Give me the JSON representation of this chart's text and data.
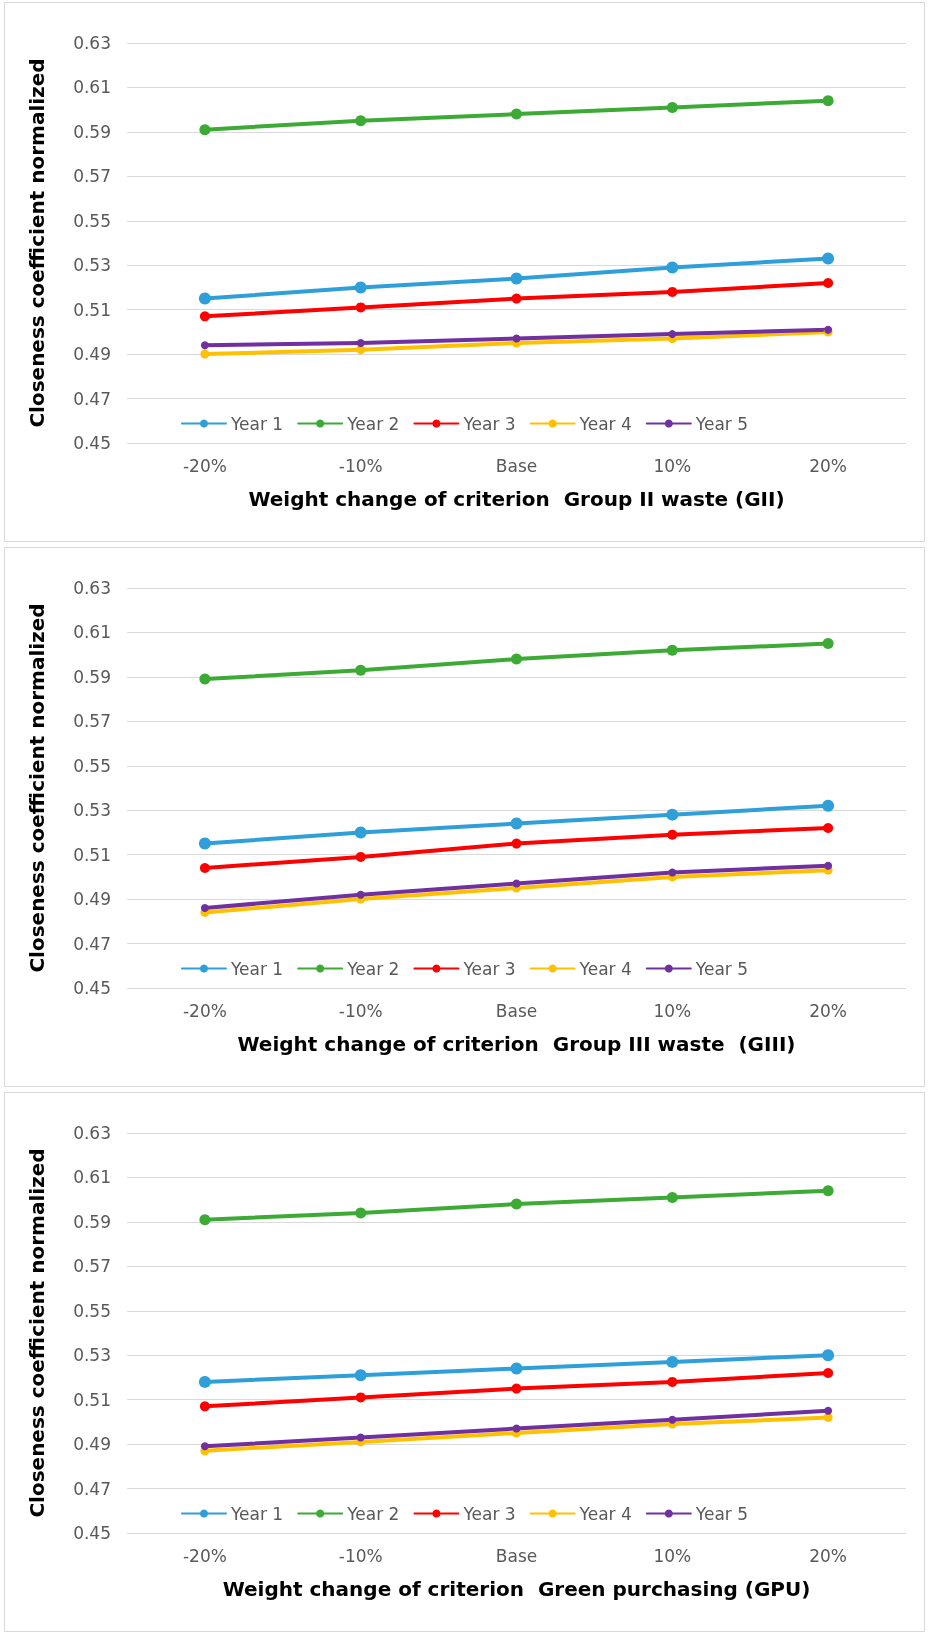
{
  "chart_data": [
    {
      "type": "line",
      "xlabel": "Weight change of criterion  Group II waste (GII)",
      "ylabel": "Closeness coefficient normalized",
      "categories": [
        "-20%",
        "-10%",
        "Base",
        "10%",
        "20%"
      ],
      "ylim": [
        0.45,
        0.63
      ],
      "yticks": [
        0.45,
        0.47,
        0.49,
        0.51,
        0.53,
        0.55,
        0.57,
        0.59,
        0.61,
        0.63
      ],
      "grid": "y",
      "legend": "bottom",
      "marker": "circle",
      "series": [
        {
          "name": "Year 1",
          "color": "#2e9fd8",
          "values": [
            0.515,
            0.52,
            0.524,
            0.529,
            0.533
          ]
        },
        {
          "name": "Year 2",
          "color": "#3daa35",
          "values": [
            0.591,
            0.595,
            0.598,
            0.601,
            0.604
          ]
        },
        {
          "name": "Year 3",
          "color": "#ff0000",
          "values": [
            0.507,
            0.511,
            0.515,
            0.518,
            0.522
          ]
        },
        {
          "name": "Year 4",
          "color": "#ffc000",
          "values": [
            0.49,
            0.492,
            0.495,
            0.497,
            0.5
          ]
        },
        {
          "name": "Year 5",
          "color": "#7030a0",
          "values": [
            0.494,
            0.495,
            0.497,
            0.499,
            0.501
          ]
        }
      ]
    },
    {
      "type": "line",
      "xlabel": "Weight change of criterion  Group III waste  (GIII)",
      "ylabel": "Closeness coefficient normalized",
      "categories": [
        "-20%",
        "-10%",
        "Base",
        "10%",
        "20%"
      ],
      "ylim": [
        0.45,
        0.63
      ],
      "yticks": [
        0.45,
        0.47,
        0.49,
        0.51,
        0.53,
        0.55,
        0.57,
        0.59,
        0.61,
        0.63
      ],
      "grid": "y",
      "legend": "bottom",
      "marker": "circle",
      "series": [
        {
          "name": "Year 1",
          "color": "#2e9fd8",
          "values": [
            0.515,
            0.52,
            0.524,
            0.528,
            0.532
          ]
        },
        {
          "name": "Year 2",
          "color": "#3daa35",
          "values": [
            0.589,
            0.593,
            0.598,
            0.602,
            0.605
          ]
        },
        {
          "name": "Year 3",
          "color": "#ff0000",
          "values": [
            0.504,
            0.509,
            0.515,
            0.519,
            0.522
          ]
        },
        {
          "name": "Year 4",
          "color": "#ffc000",
          "values": [
            0.484,
            0.49,
            0.495,
            0.5,
            0.503
          ]
        },
        {
          "name": "Year 5",
          "color": "#7030a0",
          "values": [
            0.486,
            0.492,
            0.497,
            0.502,
            0.505
          ]
        }
      ]
    },
    {
      "type": "line",
      "xlabel": "Weight change of criterion  Green purchasing (GPU)",
      "ylabel": "Closeness coefficient normalized",
      "categories": [
        "-20%",
        "-10%",
        "Base",
        "10%",
        "20%"
      ],
      "ylim": [
        0.45,
        0.63
      ],
      "yticks": [
        0.45,
        0.47,
        0.49,
        0.51,
        0.53,
        0.55,
        0.57,
        0.59,
        0.61,
        0.63
      ],
      "grid": "y",
      "legend": "bottom",
      "marker": "circle",
      "series": [
        {
          "name": "Year 1",
          "color": "#2e9fd8",
          "values": [
            0.518,
            0.521,
            0.524,
            0.527,
            0.53
          ]
        },
        {
          "name": "Year 2",
          "color": "#3daa35",
          "values": [
            0.591,
            0.594,
            0.598,
            0.601,
            0.604
          ]
        },
        {
          "name": "Year 3",
          "color": "#ff0000",
          "values": [
            0.507,
            0.511,
            0.515,
            0.518,
            0.522
          ]
        },
        {
          "name": "Year 4",
          "color": "#ffc000",
          "values": [
            0.487,
            0.491,
            0.495,
            0.499,
            0.502
          ]
        },
        {
          "name": "Year 5",
          "color": "#7030a0",
          "values": [
            0.489,
            0.493,
            0.497,
            0.501,
            0.505
          ]
        }
      ]
    }
  ]
}
